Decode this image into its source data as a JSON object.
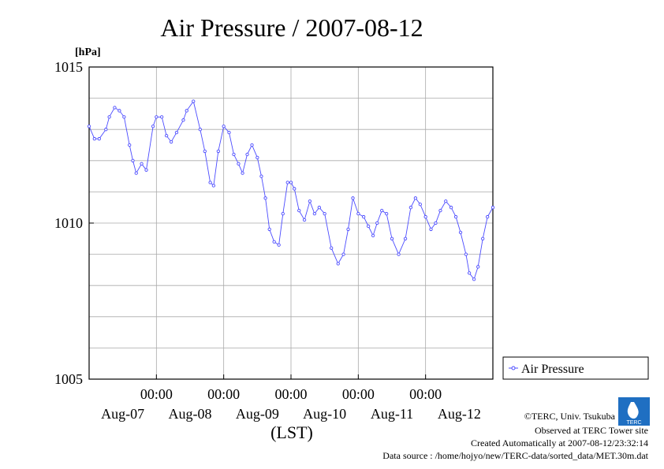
{
  "chart_data": {
    "type": "line",
    "title": "Air Pressure / 2007-08-12",
    "ylabel_unit": "[hPa]",
    "xlabel": "(LST)",
    "ylim": [
      1005,
      1015
    ],
    "yticks": [
      "1015",
      "1010",
      "1005"
    ],
    "x_tick_time": "00:00",
    "x_tick_days": [
      "Aug-07",
      "Aug-08",
      "Aug-09",
      "Aug-10",
      "Aug-11",
      "Aug-12"
    ],
    "x_range_days_since_aug07_start": [
      -1.0,
      5.0
    ],
    "grid": true,
    "legend_position": "right",
    "series": [
      {
        "name": "Air Pressure",
        "color": "#4b4bff",
        "marker": "open-circle",
        "x": [
          -1.0,
          -0.92,
          -0.85,
          -0.75,
          -0.7,
          -0.62,
          -0.55,
          -0.48,
          -0.4,
          -0.35,
          -0.3,
          -0.22,
          -0.15,
          -0.05,
          0.0,
          0.08,
          0.15,
          0.22,
          0.3,
          0.4,
          0.45,
          0.55,
          0.65,
          0.72,
          0.8,
          0.85,
          0.92,
          1.0,
          1.08,
          1.15,
          1.22,
          1.28,
          1.35,
          1.42,
          1.5,
          1.56,
          1.62,
          1.68,
          1.75,
          1.82,
          1.88,
          1.95,
          2.0,
          2.05,
          2.12,
          2.2,
          2.28,
          2.35,
          2.42,
          2.5,
          2.6,
          2.7,
          2.78,
          2.85,
          2.92,
          3.0,
          3.08,
          3.15,
          3.22,
          3.28,
          3.35,
          3.42,
          3.5,
          3.6,
          3.7,
          3.78,
          3.85,
          3.92,
          4.0,
          4.08,
          4.15,
          4.22,
          4.3,
          4.38,
          4.45,
          4.52,
          4.6,
          4.65,
          4.72,
          4.78,
          4.85,
          4.92,
          5.0
        ],
        "values": [
          1013.1,
          1012.7,
          1012.7,
          1013.0,
          1013.4,
          1013.7,
          1013.6,
          1013.4,
          1012.5,
          1012.0,
          1011.6,
          1011.9,
          1011.7,
          1013.1,
          1013.4,
          1013.4,
          1012.8,
          1012.6,
          1012.9,
          1013.3,
          1013.6,
          1013.9,
          1013.0,
          1012.3,
          1011.3,
          1011.2,
          1012.3,
          1013.1,
          1012.9,
          1012.2,
          1011.9,
          1011.6,
          1012.2,
          1012.5,
          1012.1,
          1011.5,
          1010.8,
          1009.8,
          1009.4,
          1009.3,
          1010.3,
          1011.3,
          1011.3,
          1011.1,
          1010.4,
          1010.1,
          1010.7,
          1010.3,
          1010.5,
          1010.3,
          1009.2,
          1008.7,
          1009.0,
          1009.8,
          1010.8,
          1010.3,
          1010.2,
          1009.9,
          1009.6,
          1010.0,
          1010.4,
          1010.3,
          1009.5,
          1009.0,
          1009.5,
          1010.5,
          1010.8,
          1010.6,
          1010.2,
          1009.8,
          1010.0,
          1010.4,
          1010.7,
          1010.5,
          1010.2,
          1009.7,
          1009.0,
          1008.4,
          1008.2,
          1008.6,
          1009.5,
          1010.2,
          1010.5
        ]
      }
    ]
  },
  "credits": {
    "copyright": "©TERC, Univ. Tsukuba",
    "observed": "Observed at TERC Tower site",
    "created": "Created Automatically at 2007-08-12/23:32:14",
    "source": "Data source : /home/hojyo/new/TERC-data/sorted_data/MET.30m.dat",
    "logo_text": "TERC"
  }
}
